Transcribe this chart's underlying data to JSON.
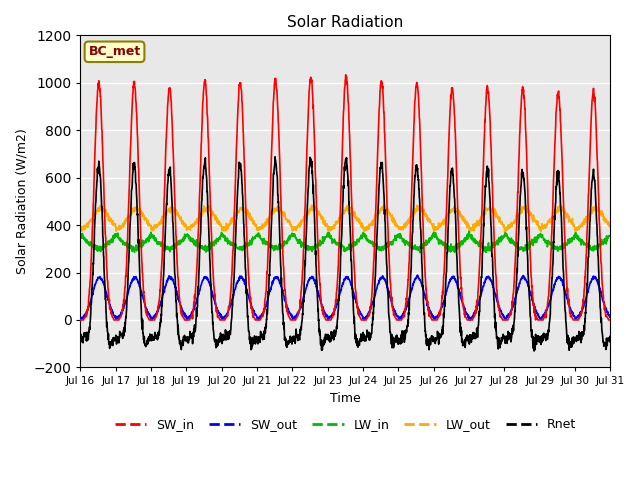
{
  "title": "Solar Radiation",
  "ylabel": "Solar Radiation (W/m2)",
  "xlabel": "Time",
  "ylim": [
    -200,
    1200
  ],
  "yticks": [
    -200,
    0,
    200,
    400,
    600,
    800,
    1000,
    1200
  ],
  "annotation": "BC_met",
  "bg_color": "#e8e8e8",
  "grid_color": "white",
  "lines": {
    "SW_in": {
      "color": "#ff0000",
      "lw": 1.2
    },
    "SW_out": {
      "color": "#0000ff",
      "lw": 1.2
    },
    "LW_in": {
      "color": "#00bb00",
      "lw": 1.2
    },
    "LW_out": {
      "color": "#ffaa00",
      "lw": 1.2
    },
    "Rnet": {
      "color": "#000000",
      "lw": 1.2
    }
  },
  "n_days": 15,
  "start_day": 16,
  "steps_per_hour": 6
}
